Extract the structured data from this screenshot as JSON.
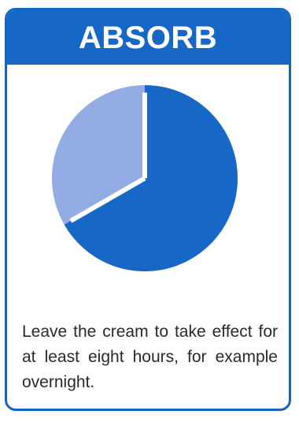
{
  "card": {
    "title": "ABSORB",
    "caption": "Leave the cream to take effect for at least eight hours, for example overnight."
  },
  "pie_icon": {
    "filled_fraction": 0.667,
    "colors": {
      "main": "#1767c6",
      "light": "#93ace4",
      "divider": "#ffffff"
    }
  }
}
